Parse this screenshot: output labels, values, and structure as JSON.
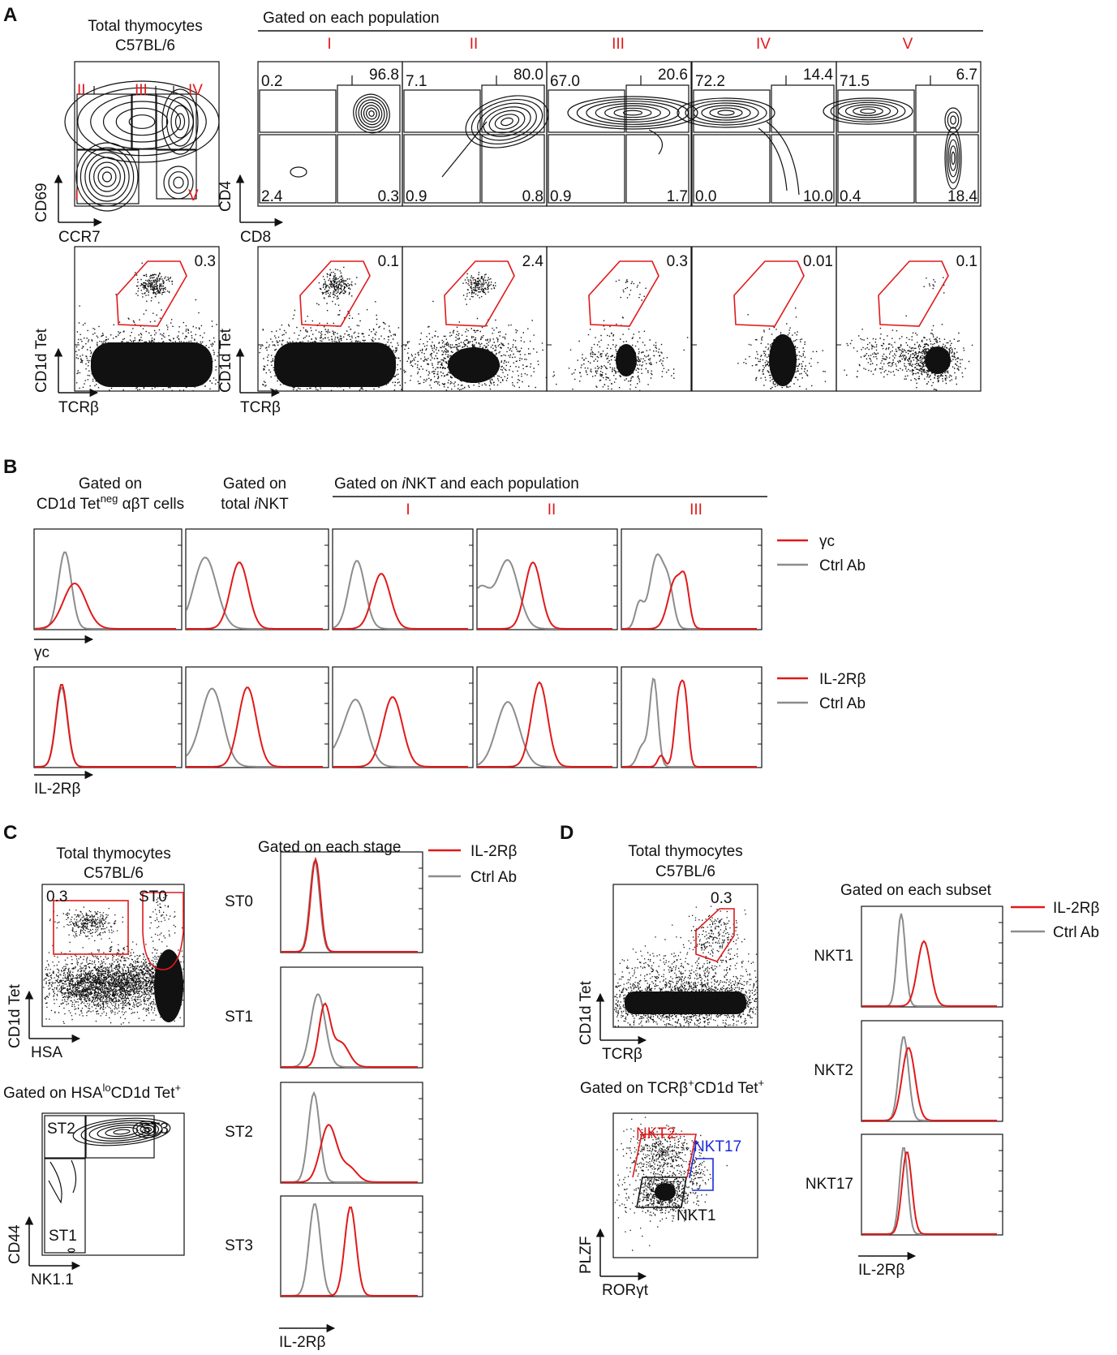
{
  "panel_letters": [
    "A",
    "B",
    "C",
    "D"
  ],
  "colors": {
    "red": "#e0191b",
    "gray": "#8c8c8c",
    "blue": "#1a2bd6",
    "black": "#111111"
  },
  "A": {
    "left_title_1": "Total thymocytes",
    "left_title_2": "C57BL/6",
    "gated_header": "Gated on each population",
    "pop_labels": [
      "I",
      "II",
      "III",
      "IV",
      "V"
    ],
    "left_gates": [
      "II",
      "III",
      "IV",
      "I",
      "V"
    ],
    "axes": {
      "y1": "CD69",
      "x1": "CCR7",
      "y2": "CD4",
      "x2": "CD8",
      "y3": "CD1d Tet",
      "x3": "TCRβ"
    },
    "quadrants": [
      {
        "tl": "0.2",
        "tr": "96.8",
        "bl": "2.4",
        "br": "0.3"
      },
      {
        "tl": "7.1",
        "tr": "80.0",
        "bl": "0.9",
        "br": "0.8"
      },
      {
        "tl": "67.0",
        "tr": "20.6",
        "bl": "0.9",
        "br": "1.7"
      },
      {
        "tl": "72.2",
        "tr": "14.4",
        "bl": "0.0",
        "br": "10.0"
      },
      {
        "tl": "71.5",
        "tr": "6.7",
        "bl": "0.4",
        "br": "18.4"
      }
    ],
    "tet_total": "0.3",
    "tet_pops": [
      "0.1",
      "2.4",
      "0.3",
      "0.01",
      "0.1"
    ]
  },
  "B": {
    "col1_line1": "Gated on",
    "col1_line2_a": "CD1d Tet",
    "col1_line2_sup": "neg",
    "col1_line2_b": " αβT cells",
    "col2_line1": "Gated on",
    "col2_line2_a": "total ",
    "col2_line2_i": "i",
    "col2_line2_b": "NKT",
    "header_a": "Gated on ",
    "header_i": "i",
    "header_b": "NKT and each population",
    "pop_labels": [
      "I",
      "II",
      "III"
    ],
    "xlabel_top": "γc",
    "xlabel_bottom": "IL-2Rβ",
    "legend_top": [
      "γc",
      "Ctrl Ab"
    ],
    "legend_bottom": [
      "IL-2Rβ",
      "Ctrl Ab"
    ]
  },
  "C": {
    "title_1": "Total thymocytes",
    "title_2": "C57BL/6",
    "gate_a": "0.3",
    "gate_b": "ST0",
    "y1": "CD1d Tet",
    "x1": "HSA",
    "subtitle_a": "Gated on HSA",
    "subtitle_sup1": "lo",
    "subtitle_b": "CD1d Tet",
    "subtitle_sup2": "+",
    "stage_gates": [
      "ST2",
      "ST3",
      "ST1"
    ],
    "y2": "CD44",
    "x2": "NK1.1",
    "hist_header": "Gated on each stage",
    "stages": [
      "ST0",
      "ST1",
      "ST2",
      "ST3"
    ],
    "legend": [
      "IL-2Rβ",
      "Ctrl Ab"
    ],
    "hist_xlabel": "IL-2Rβ"
  },
  "D": {
    "title_1": "Total thymocytes",
    "title_2": "C57BL/6",
    "gate": "0.3",
    "y1": "CD1d Tet",
    "x1": "TCRβ",
    "subtitle_a": "Gated on TCRβ",
    "subtitle_sup1": "+",
    "subtitle_b": "CD1d Tet",
    "subtitle_sup2": "+",
    "subset_gates": {
      "nkt2": "NKT2",
      "nkt17": "NKT17",
      "nkt1": "NKT1"
    },
    "y2": "PLZF",
    "x2": "RORγt",
    "hist_header": "Gated on each subset",
    "subsets": [
      "NKT1",
      "NKT2",
      "NKT17"
    ],
    "legend": [
      "IL-2Rβ",
      "Ctrl Ab"
    ],
    "hist_xlabel": "IL-2Rβ"
  }
}
